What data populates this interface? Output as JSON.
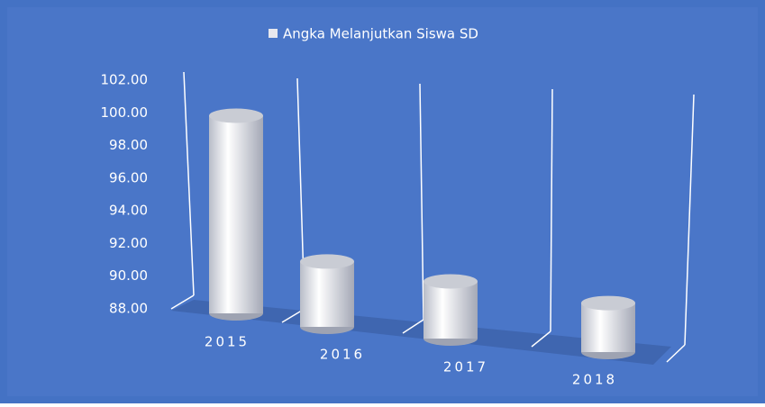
{
  "chart_data": {
    "type": "bar",
    "title": "Angka Melanjutkan Siswa SD",
    "categories": [
      "2015",
      "2016",
      "2017",
      "2018"
    ],
    "series": [
      {
        "name": "Angka Melanjutkan Siswa SD",
        "color": "#e8e8ee",
        "values": [
          100.1,
          92.0,
          91.5,
          91.0
        ]
      }
    ],
    "ylim": [
      88,
      102
    ],
    "yticks": [
      {
        "value": 88,
        "label": "88.00"
      },
      {
        "value": 90,
        "label": "90.00"
      },
      {
        "value": 92,
        "label": "92.00"
      },
      {
        "value": 94,
        "label": "94.00"
      },
      {
        "value": 96,
        "label": "96.00"
      },
      {
        "value": 98,
        "label": "98.00"
      },
      {
        "value": 100,
        "label": "100.00"
      },
      {
        "value": 102,
        "label": "102.00"
      }
    ],
    "grid": false
  }
}
